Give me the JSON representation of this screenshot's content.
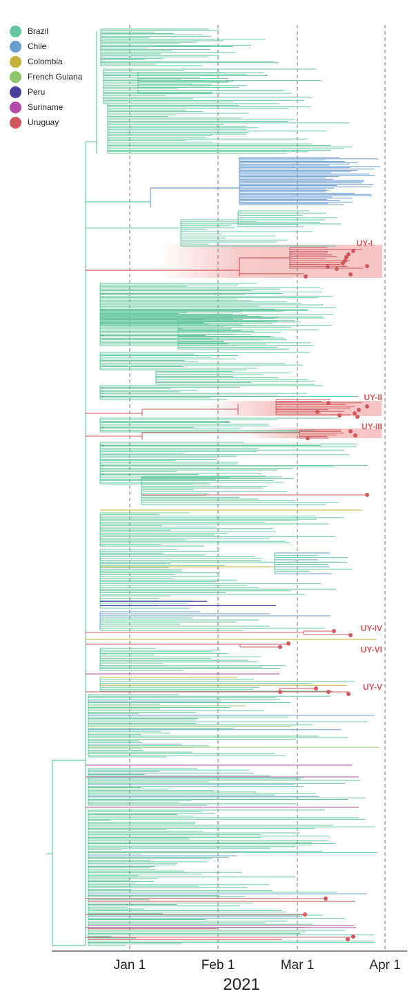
{
  "legend": [
    {
      "label": "Brazil",
      "color": "#66c6a0"
    },
    {
      "label": "Chile",
      "color": "#6a9ccf"
    },
    {
      "label": "Colombia",
      "color": "#c7b13c"
    },
    {
      "label": "French Guiana",
      "color": "#8cc56b"
    },
    {
      "label": "Peru",
      "color": "#4b3f9a"
    },
    {
      "label": "Suriname",
      "color": "#b24aa8"
    },
    {
      "label": "Uruguay",
      "color": "#d0585c"
    }
  ],
  "axis": {
    "ticks": [
      "Jan 1",
      "Feb 1",
      "Mar 1",
      "Apr 1"
    ],
    "year": "2021"
  },
  "clade_labels": [
    "UY-I",
    "UY-II",
    "UY-III",
    "UY-IV",
    "UY-VI",
    "UY-V"
  ],
  "colors": {
    "uruguay_highlight": "#f4b9b9",
    "axis": "#444444",
    "gridline": "#777777"
  }
}
